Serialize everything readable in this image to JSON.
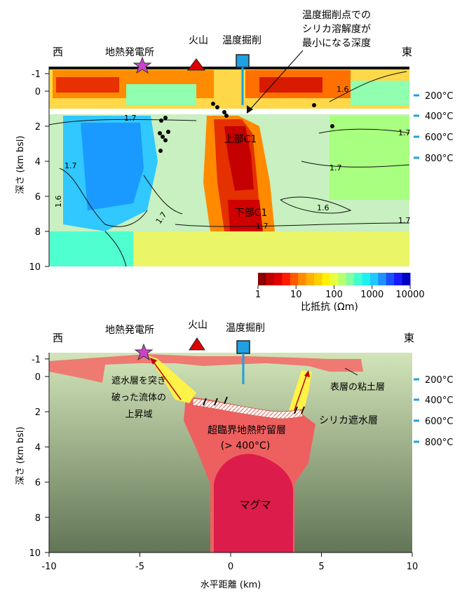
{
  "top_panel": {
    "west_label": "西",
    "east_label": "東",
    "power_plant_label": "地熱発電所",
    "volcano_label": "火山",
    "borehole_label": "温度掘削",
    "annotation_lines": [
      "温度掘削点での",
      "シリカ溶解度が",
      "最小になる深度"
    ],
    "y_axis_label": "深さ (km bsl)",
    "y_ticks": [
      "-1",
      "0",
      "2",
      "4",
      "6",
      "8",
      "10"
    ],
    "temp_ticks": [
      "200°C",
      "400°C",
      "600°C",
      "800°C"
    ],
    "region_labels": {
      "upper_c1": "上部C1",
      "lower_c1": "下部C1"
    },
    "contour_labels": [
      "1.6",
      "1.7",
      "1.7",
      "1.7",
      "1.6",
      "1.7",
      "1.7",
      "1.7",
      "1.7",
      "1.6"
    ],
    "colorbar": {
      "tick_labels": [
        "1",
        "10",
        "100",
        "1000",
        "10000"
      ],
      "title": "比抵抗 (Ωm)",
      "colors": [
        "#8b0000",
        "#c00000",
        "#e00000",
        "#ff1a00",
        "#ff5a00",
        "#ff8c00",
        "#ffb000",
        "#ffd000",
        "#fff000",
        "#e8ff40",
        "#b8ff70",
        "#80ffa0",
        "#40ffd0",
        "#20f0f0",
        "#20c8ff",
        "#2090ff",
        "#1a50ff",
        "#1a1aff",
        "#0000c0"
      ]
    }
  },
  "bottom_panel": {
    "west_label": "西",
    "east_label": "東",
    "power_plant_label": "地熱発電所",
    "volcano_label": "火山",
    "borehole_label": "温度掘削",
    "y_axis_label": "深さ (km bsl)",
    "y_ticks": [
      "-1",
      "0",
      "2",
      "4",
      "6",
      "8",
      "10"
    ],
    "x_ticks": [
      "-10",
      "-5",
      "0",
      "5",
      "10"
    ],
    "x_axis_label": "水平距離 (km)",
    "temp_ticks": [
      "200°C",
      "400°C",
      "600°C",
      "800°C"
    ],
    "labels": {
      "clay_layer": "表層の粘土層",
      "upflow": [
        "遮水層を突き",
        "破った流体の",
        "上昇域"
      ],
      "silica_seal": "シリカ遮水層",
      "reservoir": [
        "超臨界地熱貯留層",
        "(> 400°C)"
      ],
      "magma": "マグマ"
    }
  }
}
